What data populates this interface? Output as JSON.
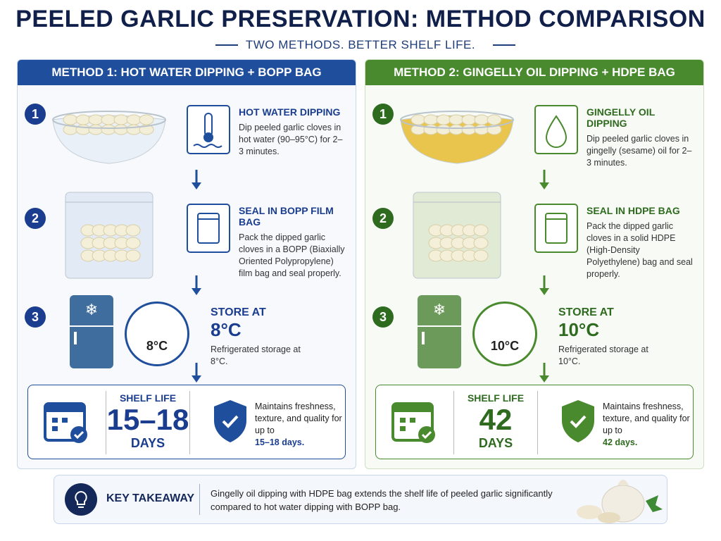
{
  "title": "PEELED GARLIC PRESERVATION: METHOD COMPARISON",
  "subtitle": "TWO METHODS. BETTER SHELF LIFE.",
  "methods": [
    {
      "header": "METHOD 1: HOT WATER DIPPING + BOPP BAG",
      "steps": [
        {
          "number": "1",
          "heading": "HOT WATER DIPPING",
          "text": "Dip peeled garlic cloves in hot water (90–95°C) for 2–3 minutes."
        },
        {
          "number": "2",
          "heading": "SEAL IN BOPP FILM BAG",
          "text": "Pack the dipped garlic cloves in a BOPP (Biaxially Oriented Polypropylene) film bag and seal properly."
        },
        {
          "number": "3",
          "heading": "STORE AT",
          "temp": "8°C",
          "gauge": "8°C",
          "text": "Refrigerated storage at 8°C."
        }
      ],
      "shelf": {
        "label": "SHELF LIFE",
        "value": "15–18",
        "unit": "DAYS",
        "note": "Maintains freshness, texture, and quality for up to",
        "highlight": "15–18 days."
      }
    },
    {
      "header": "METHOD 2: GINGELLY OIL DIPPING + HDPE BAG",
      "steps": [
        {
          "number": "1",
          "heading": "GINGELLY OIL DIPPING",
          "text": "Dip peeled garlic cloves in gingelly (sesame) oil for 2–3 minutes."
        },
        {
          "number": "2",
          "heading": "SEAL IN HDPE BAG",
          "text": "Pack the dipped garlic cloves in a solid HDPE (High-Density Polyethylene) bag and seal properly."
        },
        {
          "number": "3",
          "heading": "STORE AT",
          "temp": "10°C",
          "gauge": "10°C",
          "text": "Refrigerated storage at 10°C."
        }
      ],
      "shelf": {
        "label": "SHELF LIFE",
        "value": "42",
        "unit": "DAYS",
        "note": "Maintains freshness, texture, and quality for up to",
        "highlight": "42 days."
      }
    }
  ],
  "takeaway": {
    "label": "KEY TAKEAWAY",
    "text": "Gingelly oil dipping with HDPE bag extends the shelf life of peeled garlic significantly compared to hot water dipping with BOPP bag."
  }
}
